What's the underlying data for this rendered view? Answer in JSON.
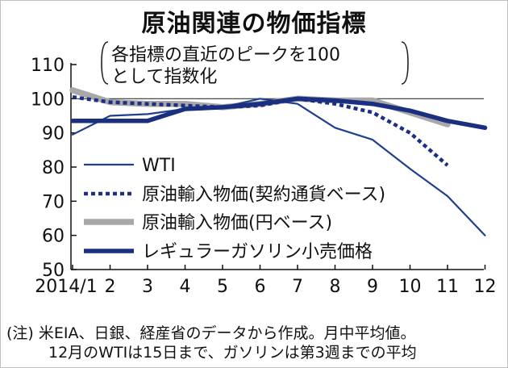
{
  "title": "原油関連の物価指標",
  "subtitle_lines": [
    "各指標の直近のピークを100",
    "として指数化"
  ],
  "notes": [
    "(注) 米EIA、日銀、経産省のデータから作成。月中平均値。",
    "12月のWTIは15日まで、ガソリンは第3週までの平均"
  ],
  "chart_data": {
    "type": "line",
    "title": "原油関連の物価指標",
    "subtitle": "各指標の直近のピークを100として指数化",
    "x": [
      "2014/1",
      "2",
      "3",
      "4",
      "5",
      "6",
      "7",
      "8",
      "9",
      "10",
      "11",
      "12"
    ],
    "ylim": [
      50,
      110
    ],
    "yticks": [
      50,
      60,
      70,
      80,
      90,
      100,
      110
    ],
    "reference_line": 100,
    "grid": false,
    "legend_position": "center-left",
    "series": [
      {
        "name": "WTI",
        "style": "thin-solid",
        "color": "#1f3f8f",
        "values": [
          89.5,
          95,
          95.5,
          97,
          97.5,
          100,
          98.5,
          91.5,
          88,
          79.5,
          71.5,
          60
        ]
      },
      {
        "name": "原油輸入物価(契約通貨ベース)",
        "style": "dotted",
        "color": "#1c2f84",
        "values": [
          100.5,
          99,
          98.5,
          98,
          97.5,
          98,
          100,
          98.5,
          96,
          90,
          80.5,
          null
        ]
      },
      {
        "name": "原油輸入物価(円ベース)",
        "style": "thick-gray",
        "color": "#a8a8a8",
        "values": [
          102.5,
          99,
          98.5,
          98.5,
          97.5,
          98.5,
          100,
          99.5,
          99.5,
          96,
          92.5,
          null
        ]
      },
      {
        "name": "レギュラーガソリン小売価格",
        "style": "thick-solid",
        "color": "#1a2f7f",
        "values": [
          93.5,
          93.5,
          93.5,
          97,
          97.5,
          98.5,
          100,
          99.5,
          98.5,
          96.5,
          93.5,
          91.5
        ]
      }
    ]
  }
}
